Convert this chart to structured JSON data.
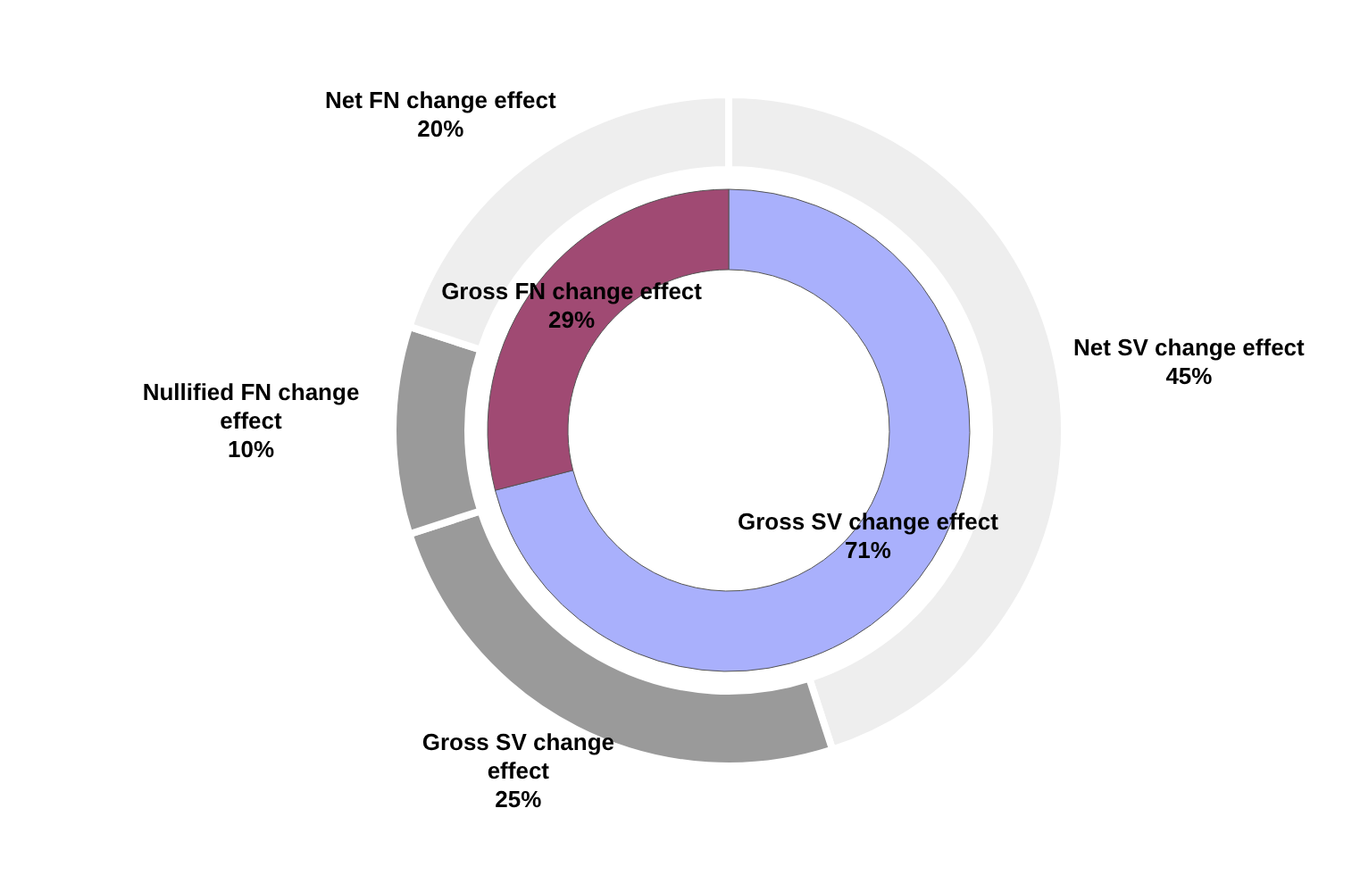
{
  "chart_data": [
    {
      "type": "donut",
      "categories": [
        "Gross SV change effect",
        "Gross FN change effect"
      ],
      "values": [
        71,
        29
      ],
      "value_labels": [
        "71%",
        "29%"
      ],
      "colors": [
        "#a9b0fc",
        "#a04a73"
      ]
    },
    {
      "type": "donut",
      "categories": [
        "Net SV change effect",
        "Gross SV change effect",
        "Nullified FN change effect",
        "Net FN change effect"
      ],
      "values": [
        45,
        25,
        10,
        20
      ],
      "value_labels": [
        "45%",
        "25%",
        "10%",
        "20%"
      ],
      "colors": [
        "#eeeeee",
        "#9a9a9a",
        "#9a9a9a",
        "#eeeeee"
      ]
    }
  ]
}
